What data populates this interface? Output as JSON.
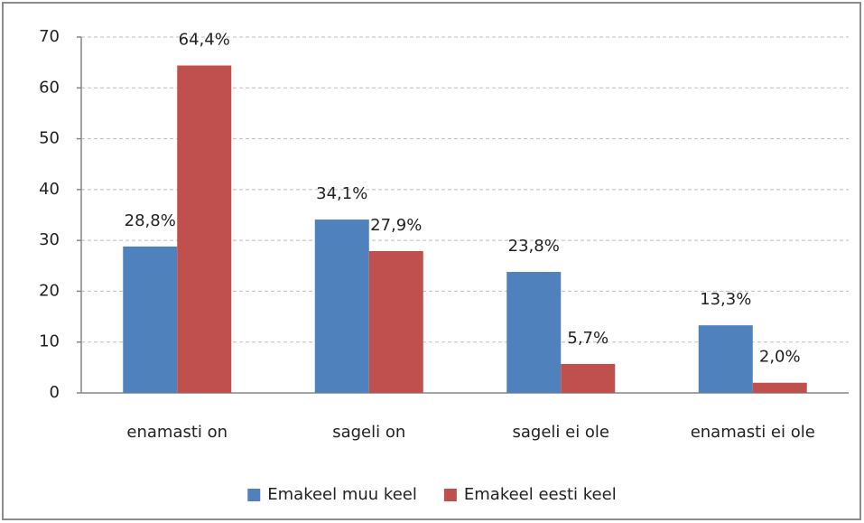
{
  "chart_data": {
    "type": "bar",
    "categories": [
      "enamasti on",
      "sageli on",
      "sageli ei ole",
      "enamasti ei ole"
    ],
    "series": [
      {
        "name": "Emakeel muu keel",
        "color": "#4f81bd",
        "values": [
          28.8,
          34.1,
          23.8,
          13.3
        ],
        "value_labels": [
          "28,8%",
          "34,1%",
          "23,8%",
          "13,3%"
        ]
      },
      {
        "name": "Emakeel eesti keel",
        "color": "#c0504d",
        "values": [
          64.4,
          27.9,
          5.7,
          2.0
        ],
        "value_labels": [
          "64,4%",
          "27,9%",
          "5,7%",
          "2,0%"
        ]
      }
    ],
    "ylim": [
      0,
      70
    ],
    "yticks": [
      0,
      10,
      20,
      30,
      40,
      50,
      60,
      70
    ],
    "grid": true,
    "legend": "bottom"
  }
}
